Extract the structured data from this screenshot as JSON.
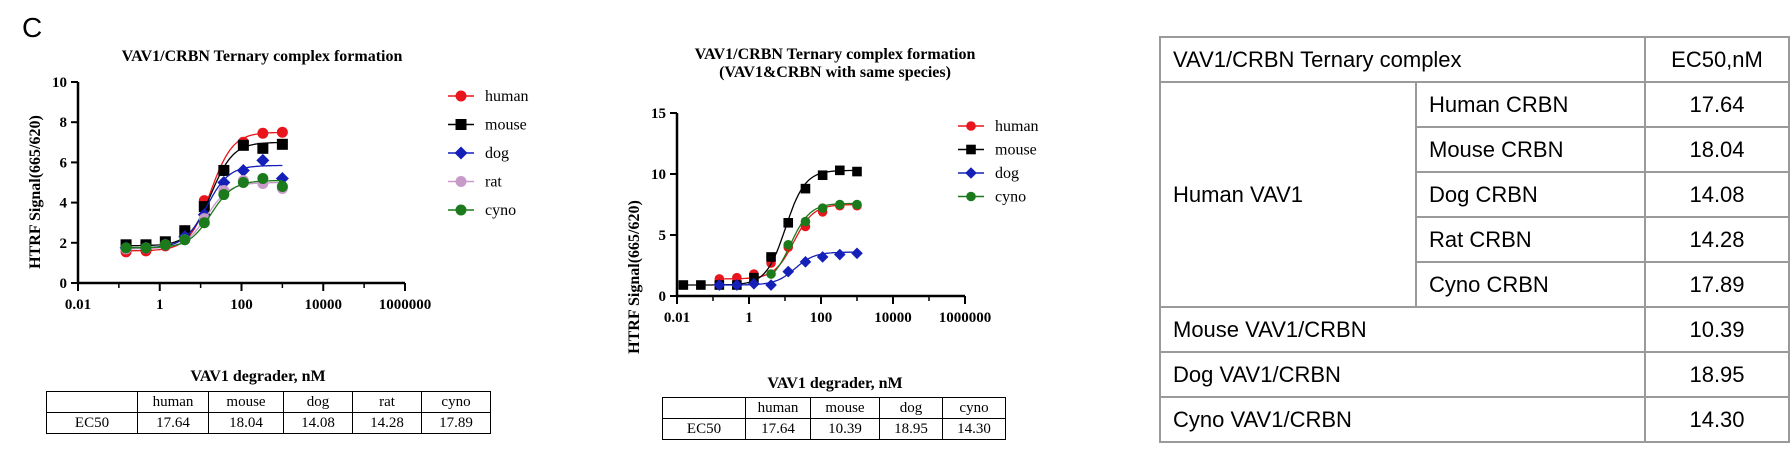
{
  "panel_label": "C",
  "chart_data": [
    {
      "type": "scatter",
      "title": "VAV1/CRBN Ternary complex formation",
      "xlabel": "VAV1 degrader, nM",
      "ylabel": "HTRF Signal(665/620)",
      "x_scale": "log",
      "xlim": [
        0.01,
        1000000
      ],
      "ylim": [
        0,
        10
      ],
      "xticks": [
        "0.01",
        "1",
        "100",
        "10000",
        "1000000"
      ],
      "yticks": [
        "0",
        "2",
        "4",
        "6",
        "8",
        "10"
      ],
      "legend_position": "right",
      "x": [
        0.15,
        0.46,
        1.37,
        4.1,
        12.3,
        37,
        111,
        333,
        1000
      ],
      "series": [
        {
          "name": "human",
          "color": "#e8161c",
          "marker": "circle",
          "values": [
            1.55,
            1.6,
            1.85,
            2.6,
            4.1,
            5.6,
            7.0,
            7.45,
            7.5
          ],
          "ec50": 17.64,
          "top": 7.5,
          "bottom": 1.6
        },
        {
          "name": "mouse",
          "color": "#000000",
          "marker": "square",
          "values": [
            1.9,
            1.9,
            2.05,
            2.6,
            3.8,
            5.6,
            6.85,
            6.7,
            6.9
          ],
          "ec50": 18.04,
          "top": 7.0,
          "bottom": 1.85
        },
        {
          "name": "dog",
          "color": "#1420b8",
          "marker": "diamond",
          "values": [
            1.75,
            1.75,
            1.9,
            2.3,
            3.4,
            5.0,
            5.6,
            6.1,
            5.2
          ],
          "ec50": 14.08,
          "top": 5.85,
          "bottom": 1.75
        },
        {
          "name": "rat",
          "color": "#c89ac8",
          "marker": "circle",
          "values": [
            1.7,
            1.75,
            1.9,
            2.15,
            3.2,
            4.6,
            5.1,
            4.95,
            4.7
          ],
          "ec50": 14.28,
          "top": 5.0,
          "bottom": 1.7
        },
        {
          "name": "cyno",
          "color": "#1b7a1b",
          "marker": "circle",
          "values": [
            1.75,
            1.75,
            1.9,
            2.15,
            3.0,
            4.4,
            5.0,
            5.2,
            4.8
          ],
          "ec50": 17.89,
          "top": 5.1,
          "bottom": 1.75
        }
      ]
    },
    {
      "type": "scatter",
      "title": "VAV1/CRBN Ternary complex formation",
      "subtitle": "(VAV1&CRBN with same species)",
      "xlabel": "VAV1 degrader, nM",
      "ylabel": "HTRF Signal(665/620)",
      "x_scale": "log",
      "xlim": [
        0.01,
        1000000
      ],
      "ylim": [
        0,
        15
      ],
      "xticks": [
        "0.01",
        "1",
        "100",
        "10000",
        "1000000"
      ],
      "yticks": [
        "0",
        "5",
        "10",
        "15"
      ],
      "legend_position": "right",
      "x": [
        0.015,
        0.046,
        0.15,
        0.46,
        1.37,
        4.1,
        12.3,
        37,
        111,
        333,
        1000
      ],
      "series": [
        {
          "name": "human",
          "color": "#e8161c",
          "marker": "circle",
          "values": [
            null,
            null,
            1.4,
            1.5,
            1.8,
            2.7,
            4.0,
            5.7,
            6.9,
            7.4,
            7.4
          ],
          "ec50": 17.64,
          "top": 7.5,
          "bottom": 1.4
        },
        {
          "name": "mouse",
          "color": "#000000",
          "marker": "square",
          "values": [
            0.9,
            0.9,
            0.9,
            0.9,
            1.5,
            3.2,
            6.0,
            8.8,
            9.9,
            10.3,
            10.2
          ],
          "ec50": 10.39,
          "top": 10.3,
          "bottom": 0.9
        },
        {
          "name": "dog",
          "color": "#1420b8",
          "marker": "diamond",
          "values": [
            null,
            null,
            0.9,
            0.9,
            1.0,
            0.9,
            2.0,
            2.8,
            3.2,
            3.4,
            3.5
          ],
          "ec50": 18.95,
          "top": 3.6,
          "bottom": 0.9
        },
        {
          "name": "cyno",
          "color": "#1b7a1b",
          "marker": "circle",
          "values": [
            null,
            null,
            null,
            null,
            null,
            1.8,
            4.2,
            6.1,
            7.2,
            7.5,
            7.5
          ],
          "ec50": 14.3,
          "top": 7.6,
          "bottom": 0.9
        }
      ]
    }
  ],
  "table1": {
    "headers": [
      "",
      "human",
      "mouse",
      "dog",
      "rat",
      "cyno"
    ],
    "row": [
      "EC50",
      "17.64",
      "18.04",
      "14.08",
      "14.28",
      "17.89"
    ]
  },
  "table2": {
    "headers": [
      "",
      "human",
      "mouse",
      "dog",
      "cyno"
    ],
    "row": [
      "EC50",
      "17.64",
      "10.39",
      "18.95",
      "14.30"
    ]
  },
  "summary_table": {
    "header_left": "VAV1/CRBN Ternary complex",
    "header_right": "EC50,nM",
    "group_label": "Human VAV1",
    "group_rows": [
      {
        "label": "Human CRBN",
        "value": "17.64"
      },
      {
        "label": "Mouse CRBN",
        "value": "18.04"
      },
      {
        "label": "Dog CRBN",
        "value": "14.08"
      },
      {
        "label": "Rat CRBN",
        "value": "14.28"
      },
      {
        "label": "Cyno CRBN",
        "value": "17.89"
      }
    ],
    "other_rows": [
      {
        "label": "Mouse VAV1/CRBN",
        "value": "10.39"
      },
      {
        "label": "Dog VAV1/CRBN",
        "value": "18.95"
      },
      {
        "label": "Cyno VAV1/CRBN",
        "value": "14.30"
      }
    ]
  }
}
